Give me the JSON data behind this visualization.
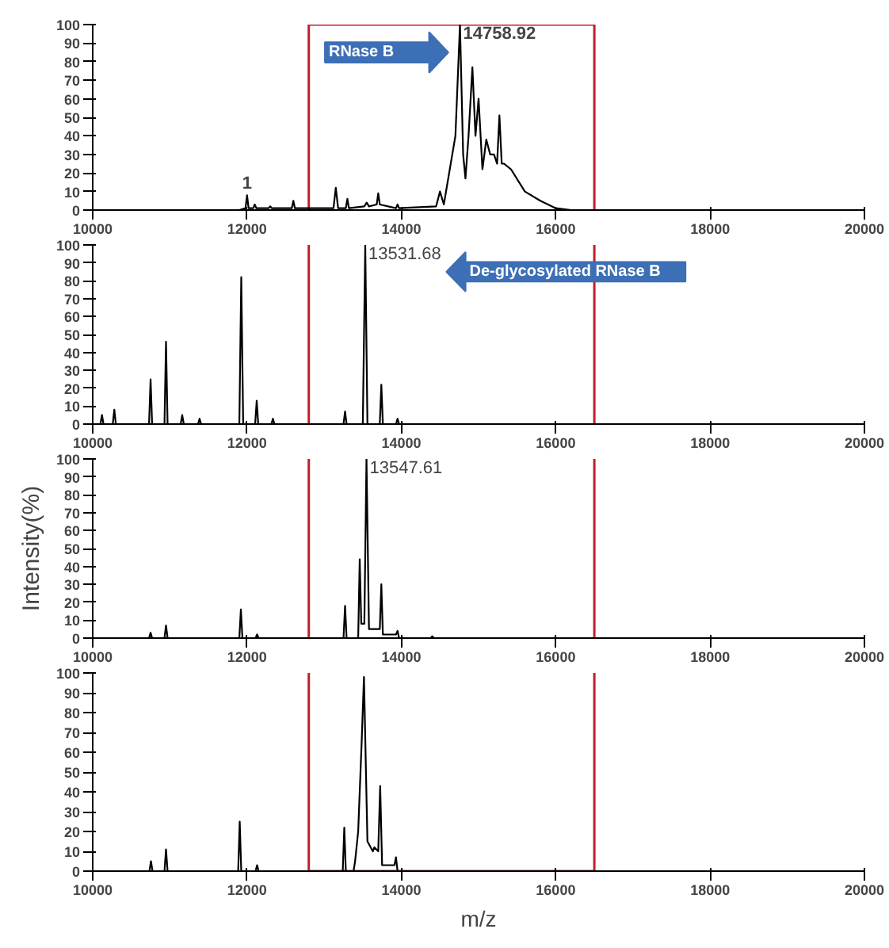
{
  "chart_data": [
    {
      "type": "line",
      "xlim": [
        10000,
        20000
      ],
      "ylim": [
        0,
        100
      ],
      "xticks": [
        10000,
        12000,
        14000,
        16000,
        18000,
        20000
      ],
      "yticks": [
        0,
        10,
        20,
        30,
        40,
        50,
        60,
        70,
        80,
        90,
        100
      ],
      "x": [
        10000,
        11900,
        11980,
        12000,
        12020,
        12080,
        12100,
        12120,
        12280,
        12300,
        12320,
        12580,
        12600,
        12620,
        13120,
        13150,
        13180,
        13280,
        13300,
        13320,
        13520,
        13550,
        13580,
        13680,
        13700,
        13720,
        13930,
        13950,
        13970,
        14450,
        14500,
        14550,
        14700,
        14758.92,
        14800,
        14830,
        14870,
        14920,
        14960,
        15000,
        15050,
        15100,
        15150,
        15200,
        15240,
        15270,
        15300,
        15330,
        15420,
        15600,
        15800,
        16000,
        16200,
        20000
      ],
      "series": [
        {
          "color": "#000000",
          "values": [
            0,
            0,
            1,
            8,
            1,
            1,
            3,
            1,
            1,
            2,
            1,
            1,
            5,
            1,
            1,
            12,
            1,
            1,
            6,
            1,
            2,
            4,
            2,
            3,
            9,
            3,
            1,
            3,
            1,
            2,
            10,
            3,
            40,
            100,
            30,
            17,
            40,
            77,
            40,
            60,
            22,
            38,
            30,
            30,
            25,
            51,
            25,
            25,
            22,
            10,
            5,
            1,
            0,
            0
          ]
        }
      ],
      "annotations": [
        {
          "text": "14758.92",
          "x": 14758.92,
          "y": 100
        },
        {
          "text": "1",
          "x": 12000,
          "y": 8
        },
        "RNase B"
      ],
      "ref_lines": [
        {
          "axis": "x",
          "value": 12800,
          "color": "#c0202a"
        },
        {
          "axis": "x",
          "value": 16500,
          "color": "#c0202a"
        }
      ]
    },
    {
      "type": "line",
      "xlim": [
        10000,
        20000
      ],
      "ylim": [
        0,
        100
      ],
      "xticks": [
        10000,
        12000,
        14000,
        16000,
        18000,
        20000
      ],
      "yticks": [
        0,
        10,
        20,
        30,
        40,
        50,
        60,
        70,
        80,
        90,
        100
      ],
      "x": [
        10000,
        10100,
        10120,
        10140,
        10260,
        10280,
        10300,
        10730,
        10750,
        10770,
        10930,
        10950,
        10970,
        11140,
        11160,
        11180,
        11365,
        11385,
        11405,
        11900,
        11925,
        11950,
        12105,
        12125,
        12145,
        12315,
        12335,
        12355,
        13250,
        13270,
        13290,
        13500,
        13531.68,
        13560,
        13720,
        13740,
        13760,
        13930,
        13950,
        13970,
        20000
      ],
      "series": [
        {
          "color": "#000000",
          "values": [
            0,
            0,
            5,
            0,
            0,
            8,
            0,
            0,
            25,
            0,
            0,
            46,
            0,
            0,
            5,
            0,
            0,
            3,
            0,
            0,
            82,
            0,
            0,
            13,
            0,
            0,
            3,
            0,
            0,
            7,
            0,
            0,
            100,
            0,
            0,
            22,
            0,
            0,
            3,
            0,
            0
          ]
        }
      ],
      "annotations": [
        {
          "text": "13531.68",
          "x": 13531.68,
          "y": 100
        },
        "De-glycosylated RNase B"
      ],
      "ref_lines": [
        {
          "axis": "x",
          "value": 12800,
          "color": "#c0202a"
        },
        {
          "axis": "x",
          "value": 16500,
          "color": "#c0202a"
        }
      ]
    },
    {
      "type": "line",
      "ylabel": "Intensity(%)",
      "xlim": [
        10000,
        20000
      ],
      "ylim": [
        0,
        100
      ],
      "xticks": [
        10000,
        12000,
        14000,
        16000,
        18000,
        20000
      ],
      "yticks": [
        0,
        10,
        20,
        30,
        40,
        50,
        60,
        70,
        80,
        90,
        100
      ],
      "x": [
        10000,
        10730,
        10750,
        10770,
        10930,
        10950,
        10970,
        11900,
        11920,
        11940,
        12110,
        12130,
        12150,
        13250,
        13270,
        13290,
        13440,
        13460,
        13480,
        13520,
        13547.61,
        13580,
        13720,
        13740,
        13760,
        13930,
        13950,
        13970,
        14380,
        14400,
        14420,
        20000
      ],
      "series": [
        {
          "color": "#000000",
          "values": [
            0,
            0,
            3,
            0,
            0,
            7,
            0,
            0,
            16,
            0,
            0,
            2,
            0,
            0,
            18,
            0,
            0,
            44,
            8,
            8,
            100,
            5,
            5,
            30,
            2,
            2,
            4,
            0,
            0,
            1,
            0,
            0
          ]
        }
      ],
      "annotations": [
        {
          "text": "13547.61",
          "x": 13547.61,
          "y": 100
        }
      ],
      "ref_lines": [
        {
          "axis": "x",
          "value": 12800,
          "color": "#c0202a"
        },
        {
          "axis": "x",
          "value": 16500,
          "color": "#c0202a"
        }
      ]
    },
    {
      "type": "line",
      "xlabel": "m/z",
      "xlim": [
        10000,
        20000
      ],
      "ylim": [
        0,
        100
      ],
      "xticks": [
        10000,
        12000,
        14000,
        16000,
        18000,
        20000
      ],
      "yticks": [
        0,
        10,
        20,
        30,
        40,
        50,
        60,
        70,
        80,
        90,
        100
      ],
      "x": [
        10000,
        10735,
        10755,
        10775,
        10930,
        10950,
        10970,
        11885,
        11905,
        11925,
        12110,
        12130,
        12150,
        13240,
        13260,
        13280,
        13380,
        13400,
        13440,
        13485,
        13515,
        13560,
        13630,
        13650,
        13700,
        13725,
        13750,
        13910,
        13930,
        13950,
        20000
      ],
      "series": [
        {
          "color": "#000000",
          "values": [
            0,
            0,
            5,
            0,
            0,
            11,
            0,
            0,
            25,
            0,
            0,
            3,
            0,
            0,
            22,
            0,
            0,
            5,
            20,
            65,
            98,
            15,
            10,
            12,
            10,
            43,
            3,
            3,
            7,
            0,
            0
          ]
        }
      ],
      "ref_lines": [
        {
          "axis": "x",
          "value": 12800,
          "color": "#c0202a"
        },
        {
          "axis": "x",
          "value": 16500,
          "color": "#c0202a"
        }
      ]
    }
  ]
}
